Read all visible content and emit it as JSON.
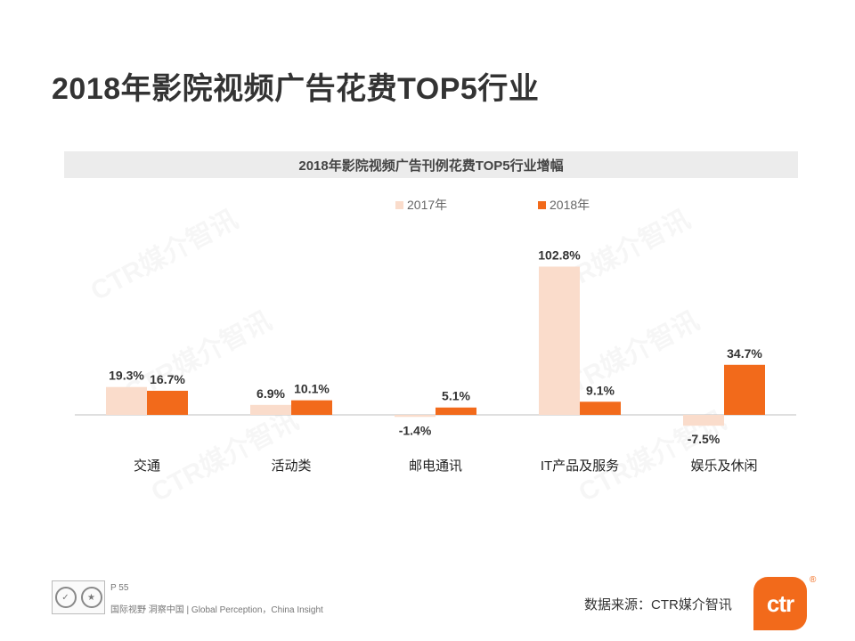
{
  "page": {
    "title": "2018年影院视频广告花费TOP5行业",
    "page_number": "P 55",
    "tagline": "国际视野 洞察中国 |  Global Perception，China Insight",
    "source": "数据来源：CTR媒介智讯",
    "logo_text": "ctr",
    "logo_reg": "®"
  },
  "watermark": {
    "text": "CTR媒介智讯"
  },
  "colors": {
    "series_2017": "#fadccb",
    "series_2018": "#f26a1b",
    "axis": "#bfbfbf",
    "label": "#333333"
  },
  "chart_data": {
    "type": "bar",
    "title": "2018年影院视频广告刊例花费TOP5行业增幅",
    "categories": [
      "交通",
      "活动类",
      "邮电通讯",
      "IT产品及服务",
      "娱乐及休闲"
    ],
    "series": [
      {
        "name": "2017年",
        "values": [
          19.3,
          6.9,
          -1.4,
          102.8,
          -7.5
        ],
        "labels": [
          "19.3%",
          "6.9%",
          "-1.4%",
          "102.8%",
          "-7.5%"
        ]
      },
      {
        "name": "2018年",
        "values": [
          16.7,
          10.1,
          5.1,
          9.1,
          34.7
        ],
        "labels": [
          "16.7%",
          "10.1%",
          "5.1%",
          "9.1%",
          "34.7%"
        ]
      }
    ],
    "unit": "%",
    "xlabel": "",
    "ylabel": "",
    "ylim": [
      -10,
      110
    ],
    "grid": false,
    "legend_position": "top"
  }
}
